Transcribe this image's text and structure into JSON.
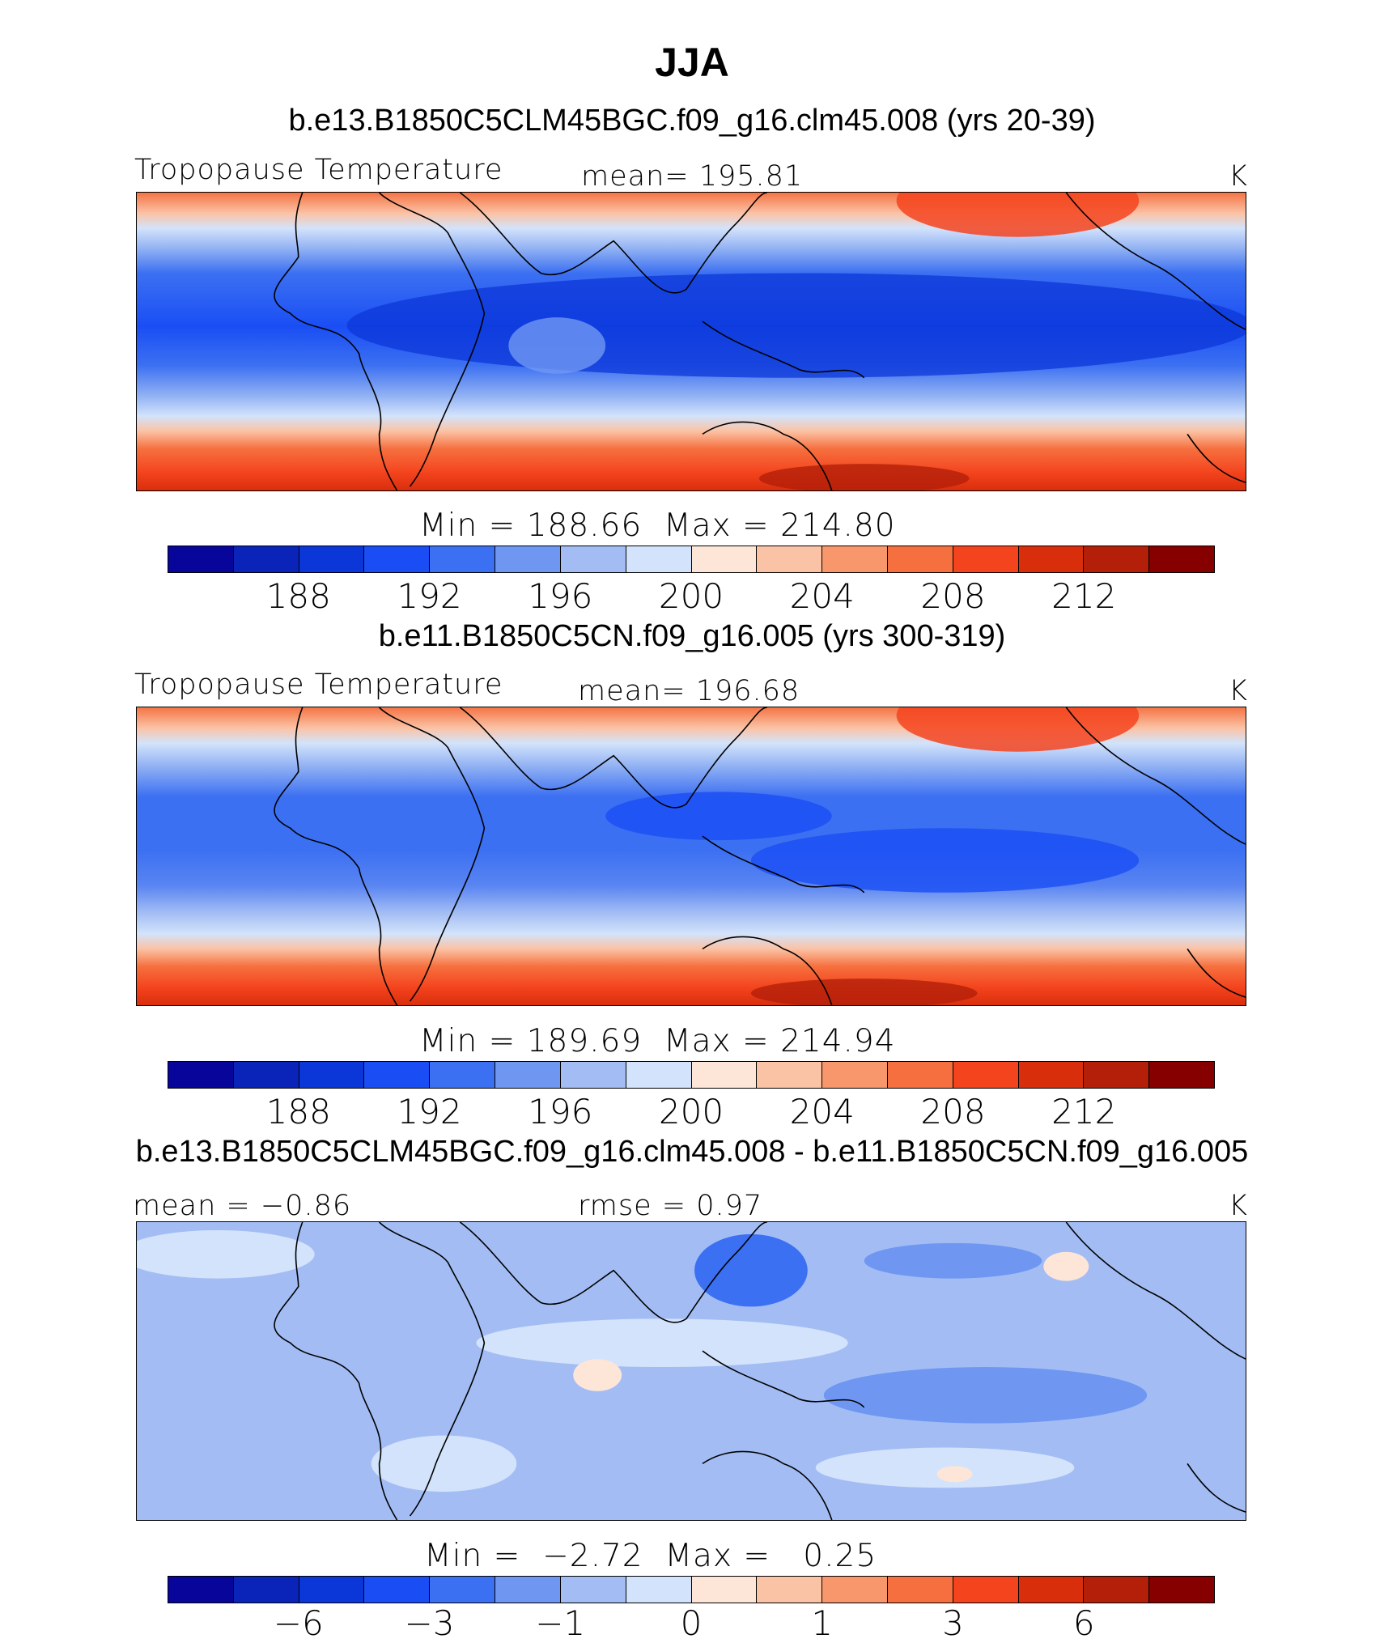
{
  "title": "JJA",
  "colors": {
    "diverging": [
      "#08059a",
      "#0a24b9",
      "#0c37d8",
      "#1a4ef4",
      "#3c70f2",
      "#6f97f2",
      "#a3bdf4",
      "#d3e3fb",
      "#fde6d8",
      "#fbc3a6",
      "#f8976c",
      "#f6703f",
      "#f4441e",
      "#d92e0c",
      "#b31f09",
      "#860000"
    ]
  },
  "panels": [
    {
      "case": "b.e13.B1850C5CLM45BGC.f09_g16.clm45.008 (yrs 20-39)",
      "left_label": "Tropopause Temperature",
      "stat_label": "mean=",
      "stat_value": "195.81",
      "units": "K",
      "min_label": "Min",
      "min_value": "188.66",
      "max_label": "Max",
      "max_value": "214.80",
      "tick_labels": [
        "188",
        "192",
        "196",
        "200",
        "204",
        "208",
        "212"
      ],
      "field": "tropopause temperature, mean"
    },
    {
      "case": "b.e11.B1850C5CN.f09_g16.005 (yrs 300-319)",
      "left_label": "Tropopause Temperature",
      "stat_label": "mean=",
      "stat_value": "196.68",
      "units": "K",
      "min_label": "Min",
      "min_value": "189.69",
      "max_label": "Max",
      "max_value": "214.94",
      "tick_labels": [
        "188",
        "192",
        "196",
        "200",
        "204",
        "208",
        "212"
      ],
      "field": "tropopause temperature, mean"
    },
    {
      "case": "b.e13.B1850C5CLM45BGC.f09_g16.clm45.008 - b.e11.B1850C5CN.f09_g16.005",
      "left_label": "mean =",
      "left_value": "−0.86",
      "stat_label": "rmse =",
      "stat_value": "0.97",
      "units": "K",
      "min_label": "Min",
      "min_value": "−2.72",
      "max_label": "Max",
      "max_value": "0.25",
      "tick_labels": [
        "−6",
        "−3",
        "−1",
        "0",
        "1",
        "3",
        "6"
      ],
      "field": "difference"
    }
  ]
}
